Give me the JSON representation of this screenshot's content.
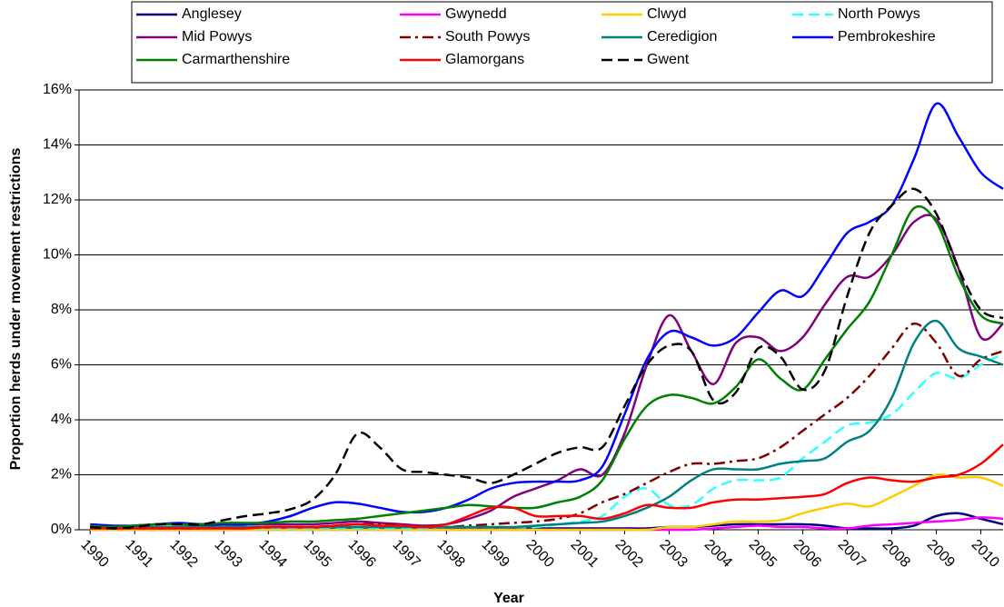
{
  "chart_data": {
    "type": "line",
    "xlabel": "Year",
    "ylabel": "Proportion herds under movement restrictions",
    "x": [
      1990,
      1990.5,
      1991,
      1991.5,
      1992,
      1992.5,
      1993,
      1993.5,
      1994,
      1994.5,
      1995,
      1995.5,
      1996,
      1996.5,
      1997,
      1997.5,
      1998,
      1998.5,
      1999,
      1999.5,
      2000,
      2000.5,
      2001,
      2001.5,
      2002,
      2002.5,
      2003,
      2003.5,
      2004,
      2004.5,
      2005,
      2005.5,
      2006,
      2006.5,
      2007,
      2007.5,
      2008,
      2008.5,
      2009,
      2009.5,
      2010,
      2010.5
    ],
    "xlim": [
      1989.75,
      2010.5
    ],
    "xticks": [
      1990,
      1991,
      1992,
      1993,
      1994,
      1995,
      1996,
      1997,
      1998,
      1999,
      2000,
      2001,
      2002,
      2003,
      2004,
      2005,
      2006,
      2007,
      2008,
      2009,
      2010
    ],
    "ylim": [
      0,
      16
    ],
    "yticks": [
      {
        "value": 0,
        "label": "0%"
      },
      {
        "value": 2,
        "label": "2%"
      },
      {
        "value": 4,
        "label": "4%"
      },
      {
        "value": 6,
        "label": "6%"
      },
      {
        "value": 8,
        "label": "8%"
      },
      {
        "value": 10,
        "label": "10%"
      },
      {
        "value": 12,
        "label": "12%"
      },
      {
        "value": 14,
        "label": "14%"
      },
      {
        "value": 16,
        "label": "16%"
      }
    ],
    "grid": true,
    "smooth": true,
    "legend": "top",
    "series": [
      {
        "name": "Anglesey",
        "color": "#000080",
        "dash": "solid",
        "values": [
          0.15,
          0.1,
          0.15,
          0.2,
          0.2,
          0.15,
          0.1,
          0.1,
          0.05,
          0.05,
          0.05,
          0.05,
          0.05,
          0.05,
          0.05,
          0.05,
          0.05,
          0.05,
          0.05,
          0.05,
          0.05,
          0.05,
          0.05,
          0.05,
          0.05,
          0.05,
          0.1,
          0.1,
          0.15,
          0.2,
          0.2,
          0.2,
          0.2,
          0.15,
          0.05,
          0.05,
          0.05,
          0.15,
          0.5,
          0.6,
          0.4,
          0.2
        ]
      },
      {
        "name": "Gwynedd",
        "color": "#ff00ff",
        "dash": "solid",
        "values": [
          0,
          0,
          0,
          0,
          0,
          0,
          0,
          0,
          0,
          0,
          0,
          0,
          0,
          0,
          0,
          0,
          0,
          0,
          0,
          0,
          0,
          0,
          0,
          0,
          0,
          0,
          0,
          0,
          0.05,
          0.1,
          0.15,
          0.1,
          0.1,
          0.05,
          0.05,
          0.15,
          0.2,
          0.25,
          0.3,
          0.35,
          0.45,
          0.4
        ]
      },
      {
        "name": "Clwyd",
        "color": "#ffcc00",
        "dash": "solid",
        "values": [
          0,
          0,
          0,
          0,
          0,
          0,
          0,
          0,
          0,
          0,
          0,
          0,
          0,
          0,
          0,
          0,
          0,
          0,
          0,
          0,
          0,
          0,
          0,
          0,
          0,
          0,
          0.1,
          0.1,
          0.2,
          0.3,
          0.3,
          0.35,
          0.6,
          0.8,
          0.95,
          0.85,
          1.2,
          1.6,
          2.0,
          1.9,
          1.9,
          1.6
        ]
      },
      {
        "name": "North Powys",
        "color": "#33ffff",
        "dash": "dash",
        "values": [
          0.05,
          0.05,
          0.05,
          0.05,
          0.05,
          0.05,
          0.05,
          0.05,
          0.05,
          0.05,
          0.05,
          0.05,
          0.05,
          0.05,
          0.05,
          0.05,
          0.1,
          0.1,
          0.1,
          0.1,
          0.1,
          0.2,
          0.3,
          0.5,
          1.2,
          1.5,
          0.9,
          0.9,
          1.5,
          1.8,
          1.8,
          1.9,
          2.6,
          3.2,
          3.8,
          3.9,
          4.2,
          5.0,
          5.7,
          5.5,
          6.0,
          6.4
        ]
      },
      {
        "name": "Mid Powys",
        "color": "#800080",
        "dash": "solid",
        "values": [
          0.1,
          0.1,
          0.15,
          0.2,
          0.2,
          0.2,
          0.2,
          0.2,
          0.2,
          0.2,
          0.2,
          0.25,
          0.3,
          0.25,
          0.2,
          0.15,
          0.2,
          0.4,
          0.7,
          1.2,
          1.5,
          1.8,
          2.2,
          2.0,
          3.5,
          6.0,
          7.8,
          6.5,
          5.3,
          6.8,
          7.0,
          6.5,
          7.0,
          8.2,
          9.2,
          9.2,
          10.0,
          11.2,
          11.3,
          9.5,
          7.0,
          7.5
        ]
      },
      {
        "name": "South Powys",
        "color": "#800000",
        "dash": "dashdot",
        "values": [
          0.05,
          0.05,
          0.05,
          0.05,
          0.05,
          0.05,
          0.1,
          0.1,
          0.1,
          0.1,
          0.1,
          0.15,
          0.2,
          0.2,
          0.15,
          0.1,
          0.1,
          0.15,
          0.2,
          0.25,
          0.3,
          0.4,
          0.6,
          1.0,
          1.3,
          1.7,
          2.1,
          2.4,
          2.4,
          2.5,
          2.6,
          3.0,
          3.6,
          4.2,
          4.8,
          5.6,
          6.6,
          7.5,
          6.8,
          5.6,
          6.2,
          6.5
        ]
      },
      {
        "name": "Ceredigion",
        "color": "#008080",
        "dash": "solid",
        "values": [
          0.1,
          0.1,
          0.1,
          0.1,
          0.1,
          0.1,
          0.1,
          0.1,
          0.1,
          0.1,
          0.1,
          0.1,
          0.1,
          0.1,
          0.1,
          0.1,
          0.1,
          0.1,
          0.1,
          0.1,
          0.15,
          0.2,
          0.25,
          0.3,
          0.5,
          0.8,
          1.2,
          1.8,
          2.2,
          2.2,
          2.2,
          2.4,
          2.5,
          2.6,
          3.2,
          3.6,
          4.8,
          6.8,
          7.6,
          6.6,
          6.3,
          6.0
        ]
      },
      {
        "name": "Pembrokeshire",
        "color": "#0000ff",
        "dash": "solid",
        "values": [
          0.2,
          0.15,
          0.15,
          0.2,
          0.25,
          0.2,
          0.2,
          0.2,
          0.3,
          0.5,
          0.8,
          1.0,
          0.95,
          0.8,
          0.65,
          0.65,
          0.8,
          1.1,
          1.5,
          1.7,
          1.75,
          1.75,
          1.8,
          2.3,
          4.2,
          6.2,
          7.2,
          7.0,
          6.7,
          7.0,
          7.9,
          8.7,
          8.5,
          9.6,
          10.8,
          11.2,
          11.8,
          13.5,
          15.5,
          14.3,
          13.0,
          12.4
        ]
      },
      {
        "name": "Carmarthenshire",
        "color": "#008000",
        "dash": "solid",
        "values": [
          0.15,
          0.1,
          0.15,
          0.2,
          0.2,
          0.2,
          0.25,
          0.25,
          0.25,
          0.3,
          0.3,
          0.35,
          0.4,
          0.5,
          0.6,
          0.7,
          0.8,
          0.9,
          0.85,
          0.8,
          0.8,
          1.0,
          1.2,
          1.8,
          3.3,
          4.5,
          4.9,
          4.8,
          4.6,
          5.2,
          6.2,
          5.5,
          5.1,
          6.2,
          7.3,
          8.3,
          10.0,
          11.7,
          11.2,
          9.2,
          7.8,
          7.5
        ]
      },
      {
        "name": "Glamorgans",
        "color": "#ff0000",
        "dash": "solid",
        "values": [
          0.05,
          0.05,
          0.05,
          0.05,
          0.05,
          0.05,
          0.05,
          0.05,
          0.1,
          0.1,
          0.1,
          0.15,
          0.2,
          0.15,
          0.15,
          0.1,
          0.2,
          0.5,
          0.8,
          0.8,
          0.5,
          0.5,
          0.5,
          0.4,
          0.6,
          0.9,
          0.8,
          0.8,
          1.0,
          1.1,
          1.1,
          1.15,
          1.2,
          1.3,
          1.7,
          1.9,
          1.8,
          1.75,
          1.9,
          2.0,
          2.4,
          3.1
        ]
      },
      {
        "name": "Gwent",
        "color": "#000000",
        "dash": "dash",
        "values": [
          0.1,
          0.05,
          0.1,
          0.2,
          0.2,
          0.2,
          0.35,
          0.5,
          0.6,
          0.75,
          1.1,
          2.0,
          3.5,
          3.0,
          2.2,
          2.1,
          2.0,
          1.9,
          1.7,
          2.0,
          2.4,
          2.8,
          3.0,
          3.0,
          4.5,
          6.0,
          6.7,
          6.5,
          4.7,
          5.0,
          6.6,
          6.3,
          5.1,
          5.8,
          8.5,
          10.8,
          11.8,
          12.4,
          11.5,
          9.5,
          8.0,
          7.7
        ]
      }
    ]
  }
}
